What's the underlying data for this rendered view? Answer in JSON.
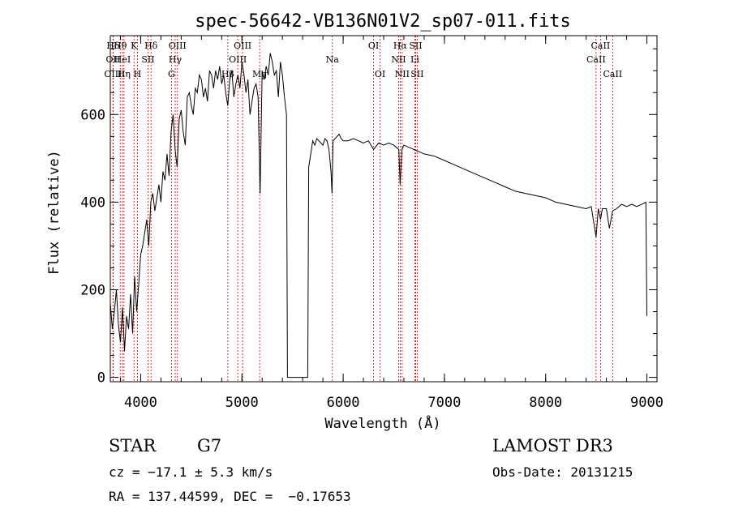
{
  "chart_data": {
    "type": "line",
    "title": "spec-56642-VB136N01V2_sp07-011.fits",
    "xlabel": "Wavelength (Å)",
    "ylabel": "Flux (relative)",
    "xlim": [
      3700,
      9100
    ],
    "ylim": [
      -10,
      780
    ],
    "x_ticks": [
      4000,
      5000,
      6000,
      7000,
      8000,
      9000
    ],
    "x_tick_labels": [
      "4000",
      "5000",
      "6000",
      "7000",
      "8000",
      "9000"
    ],
    "y_ticks": [
      0,
      200,
      400,
      600
    ],
    "y_tick_labels": [
      "0",
      "200",
      "400",
      "600"
    ],
    "grid": false,
    "series": [
      {
        "x": [
          3700,
          3720,
          3740,
          3760,
          3780,
          3800,
          3820,
          3840,
          3860,
          3880,
          3900,
          3920,
          3940,
          3960,
          3980,
          4000,
          4020,
          4040,
          4060,
          4080,
          4100,
          4120,
          4140,
          4160,
          4180,
          4200,
          4220,
          4240,
          4260,
          4280,
          4300,
          4320,
          4340,
          4360,
          4380,
          4400,
          4420,
          4440,
          4460,
          4480,
          4500,
          4520,
          4540,
          4560,
          4580,
          4600,
          4620,
          4640,
          4660,
          4680,
          4700,
          4720,
          4740,
          4760,
          4780,
          4800,
          4820,
          4840,
          4860,
          4880,
          4900,
          4920,
          4940,
          4960,
          4980,
          5000,
          5020,
          5040,
          5060,
          5080,
          5100,
          5120,
          5140,
          5160,
          5180,
          5200,
          5220,
          5240,
          5260,
          5280,
          5300,
          5320,
          5340,
          5360,
          5380,
          5400,
          5420,
          5440,
          5450,
          5650,
          5660,
          5680,
          5700,
          5720,
          5740,
          5760,
          5780,
          5800,
          5820,
          5840,
          5860,
          5880,
          5890,
          5900,
          5920,
          5940,
          5960,
          5980,
          6000,
          6050,
          6100,
          6150,
          6200,
          6250,
          6300,
          6350,
          6400,
          6450,
          6500,
          6550,
          6563,
          6580,
          6600,
          6650,
          6700,
          6750,
          6800,
          6900,
          7000,
          7100,
          7200,
          7300,
          7400,
          7500,
          7600,
          7700,
          7800,
          7900,
          8000,
          8100,
          8200,
          8300,
          8400,
          8450,
          8498,
          8520,
          8542,
          8560,
          8600,
          8630,
          8662,
          8700,
          8750,
          8800,
          8850,
          8900,
          8950,
          8990,
          9000
        ],
        "y": [
          170,
          110,
          150,
          200,
          120,
          80,
          160,
          60,
          140,
          110,
          190,
          100,
          230,
          150,
          210,
          280,
          300,
          330,
          360,
          300,
          400,
          420,
          380,
          410,
          440,
          400,
          470,
          450,
          510,
          460,
          560,
          600,
          520,
          480,
          590,
          610,
          560,
          530,
          640,
          650,
          620,
          600,
          660,
          650,
          690,
          680,
          640,
          660,
          630,
          700,
          690,
          660,
          700,
          680,
          710,
          670,
          690,
          650,
          620,
          680,
          700,
          640,
          670,
          690,
          660,
          720,
          690,
          650,
          680,
          600,
          630,
          660,
          670,
          640,
          420,
          700,
          680,
          710,
          690,
          740,
          720,
          690,
          700,
          640,
          720,
          690,
          640,
          600,
          0,
          0,
          480,
          510,
          540,
          530,
          545,
          540,
          535,
          530,
          545,
          540,
          520,
          470,
          420,
          540,
          545,
          550,
          555,
          545,
          540,
          540,
          545,
          540,
          535,
          540,
          520,
          535,
          530,
          535,
          530,
          520,
          440,
          520,
          530,
          525,
          520,
          515,
          510,
          505,
          495,
          485,
          475,
          465,
          455,
          445,
          435,
          425,
          420,
          415,
          410,
          400,
          395,
          390,
          385,
          390,
          320,
          385,
          360,
          385,
          385,
          340,
          380,
          385,
          395,
          390,
          395,
          390,
          395,
          400,
          140
        ]
      }
    ],
    "line_markers": [
      {
        "label": "Hδ",
        "x": 3727,
        "row": 0
      },
      {
        "label": "OII",
        "x": 3727,
        "row": 1
      },
      {
        "label": "OIII",
        "x": 3727,
        "row": 2
      },
      {
        "label": "Hθ",
        "x": 3798,
        "row": 0
      },
      {
        "label": "HeI",
        "x": 3820,
        "row": 1
      },
      {
        "label": "Hη",
        "x": 3835,
        "row": 2
      },
      {
        "label": "K",
        "x": 3934,
        "row": 0
      },
      {
        "label": "H",
        "x": 3968,
        "row": 2
      },
      {
        "label": "SII",
        "x": 4072,
        "row": 1
      },
      {
        "label": "Hδ",
        "x": 4102,
        "row": 0
      },
      {
        "label": "G",
        "x": 4304,
        "row": 2
      },
      {
        "label": "Hγ",
        "x": 4341,
        "row": 1
      },
      {
        "label": "OIII",
        "x": 4363,
        "row": 0
      },
      {
        "label": "Hβ",
        "x": 4861,
        "row": 2
      },
      {
        "label": "OIII",
        "x": 4959,
        "row": 1
      },
      {
        "label": "OIII",
        "x": 5007,
        "row": 0
      },
      {
        "label": "Mg",
        "x": 5175,
        "row": 2
      },
      {
        "label": "Na",
        "x": 5893,
        "row": 1
      },
      {
        "label": "OI",
        "x": 6300,
        "row": 0
      },
      {
        "label": "OI",
        "x": 6364,
        "row": 2
      },
      {
        "label": "NII",
        "x": 6548,
        "row": 1
      },
      {
        "label": "Hα",
        "x": 6563,
        "row": 0
      },
      {
        "label": "NII",
        "x": 6583,
        "row": 2
      },
      {
        "label": "SII",
        "x": 6716,
        "row": 0
      },
      {
        "label": "Li",
        "x": 6708,
        "row": 1
      },
      {
        "label": "SII",
        "x": 6731,
        "row": 2
      },
      {
        "label": "CaII",
        "x": 8498,
        "row": 1
      },
      {
        "label": "CaII",
        "x": 8542,
        "row": 0
      },
      {
        "label": "CaII",
        "x": 8662,
        "row": 2
      }
    ]
  },
  "info": {
    "object_class": "STAR",
    "subclass": "G7",
    "survey": "LAMOST DR3",
    "cz": "cz = −17.1 ± 5.3 km/s",
    "obs_date": "Obs-Date: 20131215",
    "coords": "RA = 137.44599, DEC =  −0.17653"
  }
}
